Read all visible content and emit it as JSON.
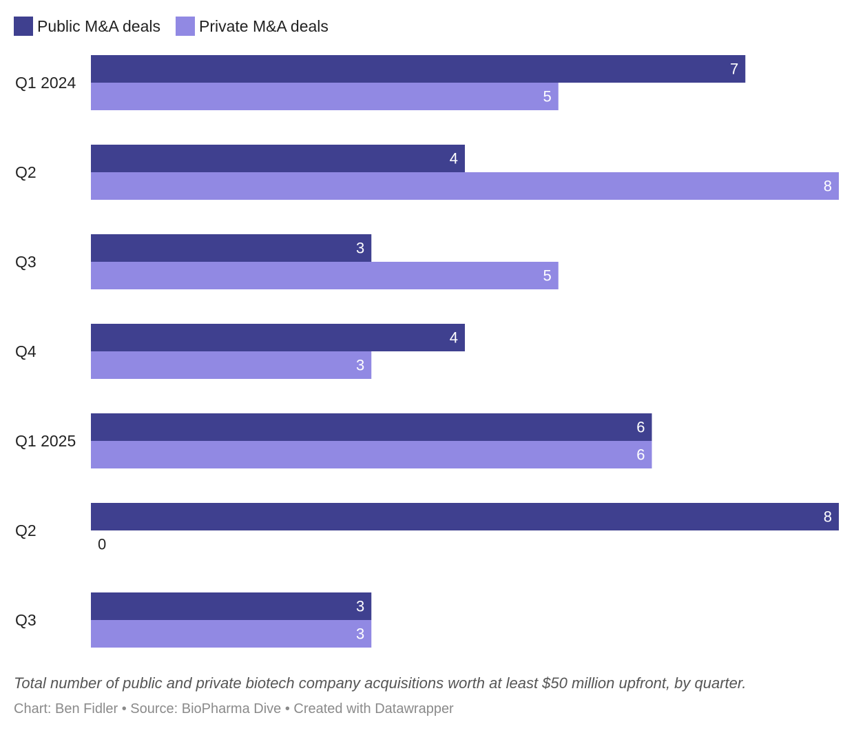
{
  "colors": {
    "public": "#3f408f",
    "private": "#9189e3",
    "label_inside": "#ffffff",
    "label_outside": "#222222"
  },
  "legend": [
    {
      "name": "Public M&A deals",
      "color": "#3f408f"
    },
    {
      "name": "Private M&A deals",
      "color": "#9189e3"
    }
  ],
  "chart_data": {
    "type": "bar",
    "orientation": "horizontal",
    "categories": [
      "Q1 2024",
      "Q2",
      "Q3",
      "Q4",
      "Q1 2025",
      "Q2",
      "Q3"
    ],
    "series": [
      {
        "name": "Public M&A deals",
        "values": [
          7,
          4,
          3,
          4,
          6,
          8,
          3
        ]
      },
      {
        "name": "Private M&A deals",
        "values": [
          5,
          8,
          5,
          3,
          6,
          0,
          3
        ]
      }
    ],
    "xlim": [
      0,
      8
    ],
    "grid": false,
    "legend_position": "top-left"
  },
  "notes": "Total number of public and private biotech company acquisitions worth at least $50 million upfront, by quarter.",
  "footer": "Chart: Ben Fidler • Source: BioPharma Dive • Created with Datawrapper"
}
